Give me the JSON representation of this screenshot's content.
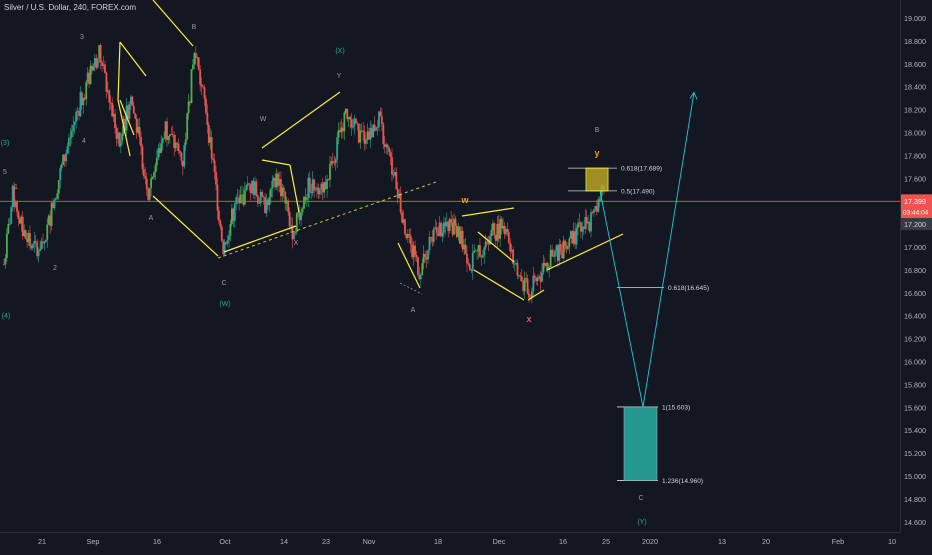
{
  "header": {
    "title": "Silver / U.S. Dollar, 240, FOREX.com"
  },
  "colors": {
    "background": "#131722",
    "up_candle": "#26a69a",
    "down_candle": "#ef5350",
    "up_candle_bright": "#4caf50",
    "annotation_yellow": "#ffeb3b",
    "projection_teal": "#26c6da",
    "price_line": "#ef5350",
    "axis_text": "#b2b5be",
    "wave_label_grey": "#9598a1",
    "wave_label_teal": "#26a69a",
    "wave_label_orange": "#ff9800",
    "wave_label_red": "#ef5350",
    "target_box_fill": "#26a69a",
    "resistance_box_fill": "#b8a424"
  },
  "chart_data": {
    "type": "candlestick",
    "symbol": "Silver / U.S. Dollar",
    "timeframe": "240",
    "source": "FOREX.com",
    "y_range": [
      14.5,
      19.2
    ],
    "y_ticks": [
      "19.000",
      "18.800",
      "18.600",
      "18.400",
      "18.200",
      "18.000",
      "17.800",
      "17.600",
      "17.400",
      "17.200",
      "17.000",
      "16.800",
      "16.600",
      "16.400",
      "16.200",
      "16.000",
      "15.800",
      "15.600",
      "15.400",
      "15.200",
      "15.000",
      "14.800",
      "14.600"
    ],
    "x_ticks": [
      "21",
      "Sep",
      "16",
      "Oct",
      "14",
      "23",
      "Nov",
      "18",
      "Dec",
      "16",
      "25",
      "2020",
      "13",
      "20",
      "Feb",
      "10"
    ],
    "current_price": "17.399",
    "countdown": "03:44:04",
    "bid_tag": "17.200",
    "price_path": [
      {
        "t": 0,
        "p": 16.85
      },
      {
        "t": 3,
        "p": 17.45
      },
      {
        "t": 7,
        "p": 17.1
      },
      {
        "t": 10,
        "p": 16.98
      },
      {
        "t": 14,
        "p": 17.05
      },
      {
        "t": 19,
        "p": 17.6
      },
      {
        "t": 25,
        "p": 18.15
      },
      {
        "t": 29,
        "p": 18.45
      },
      {
        "t": 33,
        "p": 18.7
      },
      {
        "t": 36,
        "p": 18.35
      },
      {
        "t": 40,
        "p": 17.9
      },
      {
        "t": 44,
        "p": 18.3
      },
      {
        "t": 50,
        "p": 17.5
      },
      {
        "t": 56,
        "p": 18.05
      },
      {
        "t": 62,
        "p": 17.75
      },
      {
        "t": 66,
        "p": 18.7
      },
      {
        "t": 70,
        "p": 18.2
      },
      {
        "t": 76,
        "p": 17.0
      },
      {
        "t": 80,
        "p": 17.35
      },
      {
        "t": 86,
        "p": 17.55
      },
      {
        "t": 90,
        "p": 17.35
      },
      {
        "t": 95,
        "p": 17.6
      },
      {
        "t": 100,
        "p": 17.15
      },
      {
        "t": 106,
        "p": 17.55
      },
      {
        "t": 112,
        "p": 17.55
      },
      {
        "t": 118,
        "p": 18.15
      },
      {
        "t": 124,
        "p": 17.95
      },
      {
        "t": 130,
        "p": 18.1
      },
      {
        "t": 136,
        "p": 17.55
      },
      {
        "t": 140,
        "p": 17.05
      },
      {
        "t": 144,
        "p": 16.8
      },
      {
        "t": 150,
        "p": 17.15
      },
      {
        "t": 156,
        "p": 17.2
      },
      {
        "t": 162,
        "p": 16.85
      },
      {
        "t": 168,
        "p": 17.1
      },
      {
        "t": 174,
        "p": 17.2
      },
      {
        "t": 178,
        "p": 16.75
      },
      {
        "t": 182,
        "p": 16.6
      },
      {
        "t": 188,
        "p": 16.85
      },
      {
        "t": 194,
        "p": 17.0
      },
      {
        "t": 198,
        "p": 17.1
      },
      {
        "t": 204,
        "p": 17.25
      },
      {
        "t": 208,
        "p": 17.48
      }
    ],
    "fib_levels": [
      {
        "label": "0.618(17.689)",
        "value": 17.689
      },
      {
        "label": "0.5(17.490)",
        "value": 17.49
      },
      {
        "label": "0.618(16.645)",
        "value": 16.645
      },
      {
        "label": "1(15.603)",
        "value": 15.603
      },
      {
        "label": "1.236(14.960)",
        "value": 14.96
      }
    ],
    "wave_labels": [
      {
        "text": "(3)",
        "color": "teal"
      },
      {
        "text": "5",
        "color": "grey"
      },
      {
        "text": "1",
        "color": "grey"
      },
      {
        "text": "2",
        "color": "grey"
      },
      {
        "text": "(4)",
        "color": "teal"
      },
      {
        "text": "3",
        "color": "grey"
      },
      {
        "text": "4",
        "color": "grey"
      },
      {
        "text": "A",
        "color": "grey"
      },
      {
        "text": "B",
        "color": "grey"
      },
      {
        "text": "C",
        "color": "grey"
      },
      {
        "text": "(W)",
        "color": "teal"
      },
      {
        "text": "W",
        "color": "grey"
      },
      {
        "text": "X",
        "color": "grey"
      },
      {
        "text": "Y",
        "color": "grey"
      },
      {
        "text": "(X)",
        "color": "teal"
      },
      {
        "text": "A",
        "color": "grey"
      },
      {
        "text": "w",
        "color": "orange"
      },
      {
        "text": "x",
        "color": "red"
      },
      {
        "text": "B",
        "color": "grey"
      },
      {
        "text": "y",
        "color": "orange"
      },
      {
        "text": "C",
        "color": "grey"
      },
      {
        "text": "(Y)",
        "color": "teal"
      }
    ],
    "projection_path": [
      17.49,
      15.603,
      18.35
    ],
    "legend": "none",
    "grid": false
  }
}
